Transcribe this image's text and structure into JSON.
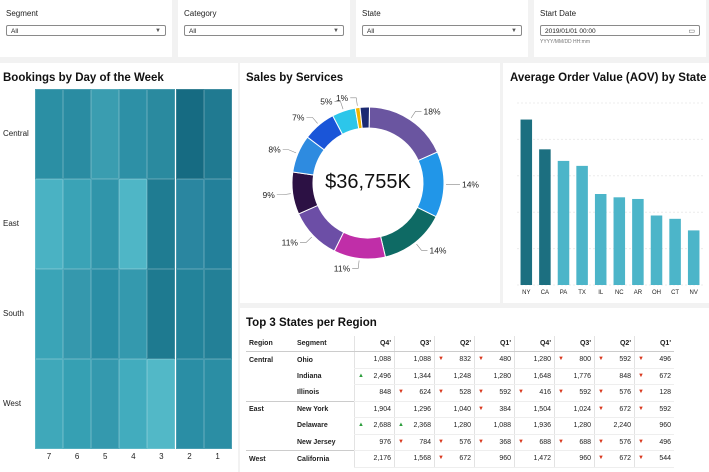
{
  "filters": [
    {
      "label": "Segment",
      "value": "All",
      "hint": ""
    },
    {
      "label": "Category",
      "value": "All",
      "hint": ""
    },
    {
      "label": "State",
      "value": "All",
      "hint": ""
    },
    {
      "label": "Start Date",
      "value": "2019/01/01 00:00",
      "hint": "YYYY/MM/DD HH:mm"
    }
  ],
  "heatmap": {
    "title": "Bookings by Day of the Week",
    "rows": [
      "Central",
      "East",
      "South",
      "West"
    ],
    "cols": [
      "7",
      "6",
      "5",
      "4",
      "3",
      "2",
      "1"
    ],
    "colors": [
      [
        "#2b8fa4",
        "#2a8ca2",
        "#3a9db0",
        "#2d90a6",
        "#2a8a9f",
        "#166b82",
        "#207a91"
      ],
      [
        "#4ab2c3",
        "#3aa3b6",
        "#3095aa",
        "#4fb6c6",
        "#1f7c92",
        "#2a86a0",
        "#23809a"
      ],
      [
        "#3aa4b7",
        "#3598ad",
        "#2a8ea5",
        "#3499ae",
        "#1e7a90",
        "#23839a",
        "#238097"
      ],
      [
        "#3fa8ba",
        "#36a0b3",
        "#3499ae",
        "#42acbe",
        "#52b8c7",
        "#2a8ea5",
        "#2b8ea4"
      ]
    ]
  },
  "services": {
    "title": "Sales by Services",
    "center": "$36,755K",
    "slices": [
      {
        "pct": 18,
        "label": "18%",
        "color": "#6a55a0"
      },
      {
        "pct": 14,
        "label": "14%",
        "color": "#2196e8"
      },
      {
        "pct": 14,
        "label": "14%",
        "color": "#0e6a64"
      },
      {
        "pct": 11,
        "label": "11%",
        "color": "#c02ea8"
      },
      {
        "pct": 11,
        "label": "11%",
        "color": "#6c4ea6"
      },
      {
        "pct": 9,
        "label": "9%",
        "color": "#2c1144"
      },
      {
        "pct": 8,
        "label": "8%",
        "color": "#2e8be0"
      },
      {
        "pct": 7,
        "label": "7%",
        "color": "#1a55d8"
      },
      {
        "pct": 5,
        "label": "5%",
        "color": "#2cc6ea"
      },
      {
        "pct": 1,
        "label": "1%",
        "color": "#f0b400"
      },
      {
        "pct": 2,
        "label": "",
        "color": "#1c2a72"
      }
    ]
  },
  "aov": {
    "title": "Average Order Value (AOV) by State",
    "chart_data": {
      "type": "bar",
      "categories": [
        "NY",
        "CA",
        "PA",
        "TX",
        "IL",
        "NC",
        "AR",
        "OH",
        "CT",
        "NV"
      ],
      "values": [
        100,
        82,
        75,
        72,
        55,
        53,
        52,
        42,
        40,
        33
      ],
      "colors": [
        "#1c6f80",
        "#1c6f80",
        "#4cb5c9",
        "#4cb5c9",
        "#4cb5c9",
        "#4cb5c9",
        "#4cb5c9",
        "#4cb5c9",
        "#4cb5c9",
        "#4cb5c9"
      ],
      "ylim": [
        0,
        110
      ]
    }
  },
  "top3": {
    "title": "Top 3 States per Region",
    "headers": [
      "Region",
      "Segment",
      "Q4'",
      "Q3'",
      "Q2'",
      "Q1'",
      "Q4'",
      "Q3'",
      "Q2'",
      "Q1'"
    ],
    "rows": [
      {
        "region": "Central",
        "state": "Ohio",
        "cells": [
          [
            "",
            "1,088"
          ],
          [
            "",
            "1,088"
          ],
          [
            "dn",
            "832"
          ],
          [
            "dn",
            "480"
          ],
          [
            "",
            "1,280"
          ],
          [
            "dn",
            "800"
          ],
          [
            "dn",
            "592"
          ],
          [
            "dn",
            "496"
          ]
        ]
      },
      {
        "region": "",
        "state": "Indiana",
        "cells": [
          [
            "up",
            "2,496"
          ],
          [
            "",
            "1,344"
          ],
          [
            "",
            "1,248"
          ],
          [
            "",
            "1,280"
          ],
          [
            "",
            "1,648"
          ],
          [
            "",
            "1,776"
          ],
          [
            "",
            "848"
          ],
          [
            "dn",
            "672"
          ]
        ]
      },
      {
        "region": "",
        "state": "Illinois",
        "cells": [
          [
            "",
            "848"
          ],
          [
            "dn",
            "624"
          ],
          [
            "dn",
            "528"
          ],
          [
            "dn",
            "592"
          ],
          [
            "dn",
            "416"
          ],
          [
            "dn",
            "592"
          ],
          [
            "dn",
            "576"
          ],
          [
            "dn",
            "128"
          ]
        ]
      },
      {
        "region": "East",
        "state": "New York",
        "cells": [
          [
            "",
            "1,904"
          ],
          [
            "",
            "1,296"
          ],
          [
            "",
            "1,040"
          ],
          [
            "dn",
            "384"
          ],
          [
            "",
            "1,504"
          ],
          [
            "",
            "1,024"
          ],
          [
            "dn",
            "672"
          ],
          [
            "dn",
            "592"
          ]
        ]
      },
      {
        "region": "",
        "state": "Delaware",
        "cells": [
          [
            "up",
            "2,688"
          ],
          [
            "up",
            "2,368"
          ],
          [
            "",
            "1,280"
          ],
          [
            "",
            "1,088"
          ],
          [
            "",
            "1,936"
          ],
          [
            "",
            "1,280"
          ],
          [
            "",
            "2,240"
          ],
          [
            "",
            "960"
          ]
        ]
      },
      {
        "region": "",
        "state": "New Jersey",
        "cells": [
          [
            "",
            "976"
          ],
          [
            "dn",
            "784"
          ],
          [
            "dn",
            "576"
          ],
          [
            "dn",
            "368"
          ],
          [
            "dn",
            "688"
          ],
          [
            "dn",
            "688"
          ],
          [
            "dn",
            "576"
          ],
          [
            "dn",
            "496"
          ]
        ]
      },
      {
        "region": "West",
        "state": "California",
        "cells": [
          [
            "",
            "2,176"
          ],
          [
            "",
            "1,568"
          ],
          [
            "dn",
            "672"
          ],
          [
            "",
            "960"
          ],
          [
            "",
            "1,472"
          ],
          [
            "",
            "960"
          ],
          [
            "dn",
            "672"
          ],
          [
            "dn",
            "544"
          ]
        ]
      }
    ]
  }
}
